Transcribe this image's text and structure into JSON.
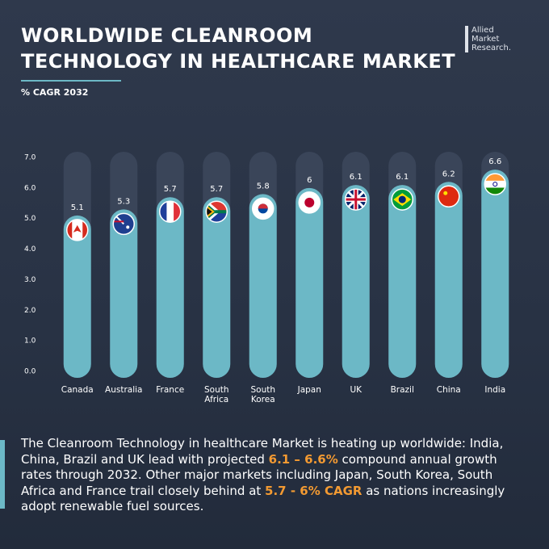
{
  "header": {
    "title_lines": [
      "WORLDWIDE CLEANROOM",
      "TECHNOLOGY IN HEALTHCARE MARKET"
    ],
    "logo_lines": [
      "Allied",
      "Market",
      "Research."
    ]
  },
  "chart_data": {
    "type": "bar",
    "subtitle": "% CAGR 2032",
    "categories": [
      "Canada",
      "Australia",
      "France",
      "South Africa",
      "South Korea",
      "Japan",
      "UK",
      "Brazil",
      "China",
      "India"
    ],
    "values": [
      5.1,
      5.3,
      5.7,
      5.7,
      5.8,
      6,
      6.1,
      6.1,
      6.2,
      6.6
    ],
    "color": "#6cb8c6",
    "ylim": [
      0,
      7
    ],
    "yticks": [
      {
        "value": 0,
        "label": "0.0"
      },
      {
        "value": 1,
        "label": "1.0"
      },
      {
        "value": 2,
        "label": "2.0"
      },
      {
        "value": 3,
        "label": "3.0"
      },
      {
        "value": 4,
        "label": "4.0"
      },
      {
        "value": 5,
        "label": "5.0"
      },
      {
        "value": 6,
        "label": "6.0"
      },
      {
        "value": 7,
        "label": "7.0"
      }
    ],
    "grid": false
  },
  "description": [
    {
      "text": "The Cleanroom Technology in healthcare Market is heating up worldwide: India, China, Brazil and UK lead with projected ",
      "highlight": false
    },
    {
      "text": "6.1 – 6.6%",
      "highlight": true
    },
    {
      "text": " compound annual growth rates through 2032. Other major markets including Japan, South Korea, South Africa and France trail closely behind at ",
      "highlight": false
    },
    {
      "text": "5.7 - 6% CAGR",
      "highlight": true
    },
    {
      "text": " as nations increasingly adopt renewable fuel sources.",
      "highlight": false
    }
  ]
}
